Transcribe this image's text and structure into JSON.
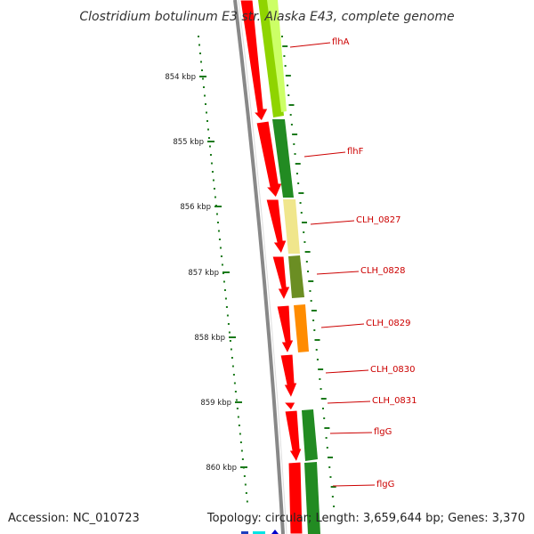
{
  "title": "Clostridium botulinum E3 str. Alaska E43, complete genome",
  "accession": "Accession: NC_010723",
  "topology": "Topology: circular; Length: 3,659,644 bp; Genes: 3,370",
  "colors": {
    "cds": "#ff0000",
    "backbone": "#888888",
    "gc_skew": "#1b7a1b",
    "label": "#cc0000"
  },
  "ticks": [
    {
      "label": "854 kbp"
    },
    {
      "label": "855 kbp"
    },
    {
      "label": "856 kbp"
    },
    {
      "label": "857 kbp"
    },
    {
      "label": "858 kbp"
    },
    {
      "label": "859 kbp"
    },
    {
      "label": "860 kbp"
    }
  ],
  "genes": [
    {
      "label": "flhA"
    },
    {
      "label": "flhF"
    },
    {
      "label": "CLH_0827"
    },
    {
      "label": "CLH_0828"
    },
    {
      "label": "CLH_0829"
    },
    {
      "label": "CLH_0830"
    },
    {
      "label": "CLH_0831"
    },
    {
      "label": "flgG"
    },
    {
      "label": "flgG"
    }
  ]
}
